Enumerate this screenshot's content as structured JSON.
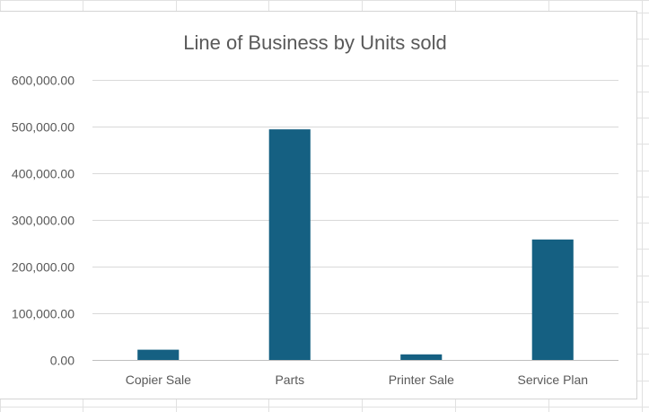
{
  "chart_data": {
    "type": "bar",
    "title": "Line of Business by Units sold",
    "xlabel": "",
    "ylabel": "",
    "categories": [
      "Copier Sale",
      "Parts",
      "Printer Sale",
      "Service Plan"
    ],
    "values": [
      22000,
      494000,
      12000,
      258000
    ],
    "ylim": [
      0,
      600000
    ],
    "yticks": [
      0,
      100000,
      200000,
      300000,
      400000,
      500000,
      600000
    ],
    "ytick_labels": [
      "0.00",
      "100,000.00",
      "200,000.00",
      "300,000.00",
      "400,000.00",
      "500,000.00",
      "600,000.00"
    ],
    "grid": true,
    "legend": "none",
    "colors": {
      "bar": "#156082",
      "grid": "#d9d9d9",
      "axis": "#bfbfbf",
      "text": "#595959",
      "sheet_grid": "#e1e1e1"
    }
  }
}
